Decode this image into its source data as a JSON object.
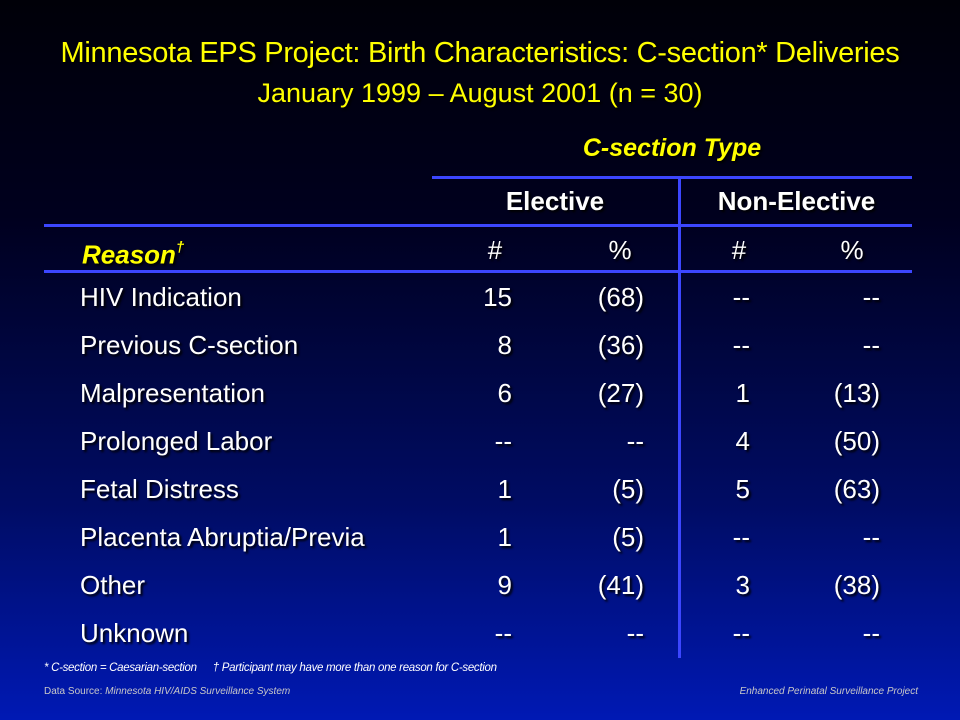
{
  "title": "Minnesota EPS Project: Birth Characteristics: C-section* Deliveries",
  "subtitle": "January 1999 – August 2001 (n = 30)",
  "table": {
    "group_header": "C-section Type",
    "columns": {
      "elective": "Elective",
      "non_elective": "Non-Elective"
    },
    "subheader": {
      "reason": "Reason",
      "reason_mark": "†",
      "count": "#",
      "percent": "%"
    },
    "rows": [
      {
        "reason": "HIV Indication",
        "e_count": "15",
        "e_pct": "(68)",
        "n_count": "--",
        "n_pct": "--"
      },
      {
        "reason": "Previous C-section",
        "e_count": "8",
        "e_pct": "(36)",
        "n_count": "--",
        "n_pct": "--"
      },
      {
        "reason": "Malpresentation",
        "e_count": "6",
        "e_pct": "(27)",
        "n_count": "1",
        "n_pct": "(13)"
      },
      {
        "reason": "Prolonged Labor",
        "e_count": "--",
        "e_pct": "--",
        "n_count": "4",
        "n_pct": "(50)"
      },
      {
        "reason": "Fetal Distress",
        "e_count": "1",
        "e_pct": "(5)",
        "n_count": "5",
        "n_pct": "(63)"
      },
      {
        "reason": "Placenta Abruptia/Previa",
        "e_count": "1",
        "e_pct": "(5)",
        "n_count": "--",
        "n_pct": "--"
      },
      {
        "reason": "Other",
        "e_count": "9",
        "e_pct": "(41)",
        "n_count": "3",
        "n_pct": "(38)"
      },
      {
        "reason": "Unknown",
        "e_count": "--",
        "e_pct": "--",
        "n_count": "--",
        "n_pct": "--"
      }
    ]
  },
  "footnotes": {
    "csection": "* C-section = Caesarian-section",
    "dagger": "† Participant may have more than one reason for C-section"
  },
  "source": {
    "label": "Data Source:",
    "name": "Minnesota HIV/AIDS Surveillance System",
    "project": "Enhanced Perinatal Surveillance Project"
  },
  "colors": {
    "title": "#ffff00",
    "rule": "#3c46ff",
    "text": "#ffffff"
  }
}
